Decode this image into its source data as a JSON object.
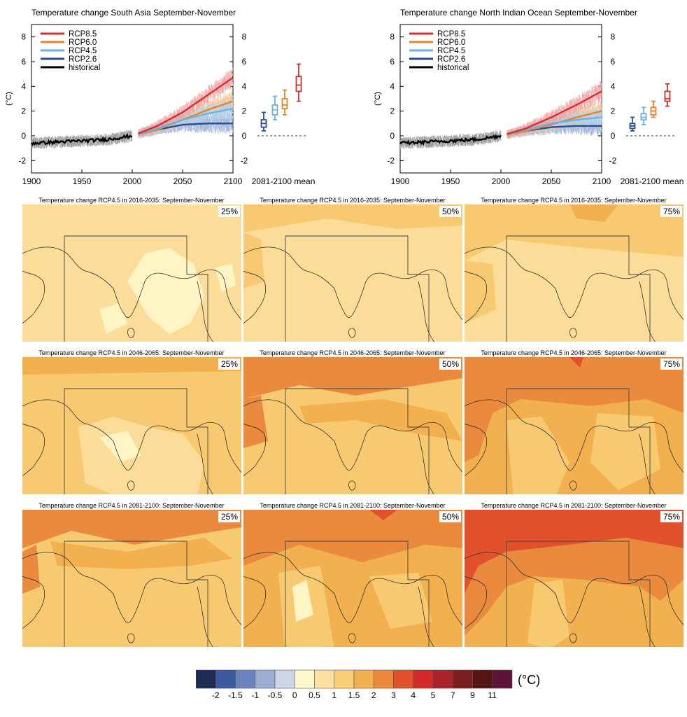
{
  "timeseries": [
    {
      "title": "Temperature change South Asia September-November",
      "ylabel": "(°C)",
      "ylim": [
        -3,
        9
      ],
      "yticks": [
        -2,
        0,
        2,
        4,
        6,
        8
      ],
      "xticks": [
        1900,
        1950,
        2000,
        2050,
        2100
      ],
      "xlim": [
        1900,
        2100
      ],
      "boxplot_label": "2081-2100 mean",
      "legend": [
        "RCP8.5",
        "RCP6.0",
        "RCP4.5",
        "RCP2.6",
        "historical"
      ],
      "series_end_2100": {
        "RCP8.5": 4.7,
        "RCP6.0": 2.8,
        "RCP4.5": 2.2,
        "RCP2.6": 1.0
      },
      "boxplots": [
        {
          "scenario": "RCP2.6",
          "p5": 0.4,
          "p25": 0.7,
          "median": 1.0,
          "p75": 1.3,
          "p95": 1.9
        },
        {
          "scenario": "RCP4.5",
          "p5": 1.3,
          "p25": 1.7,
          "median": 2.1,
          "p75": 2.5,
          "p95": 3.2
        },
        {
          "scenario": "RCP6.0",
          "p5": 1.7,
          "p25": 2.2,
          "median": 2.5,
          "p75": 3.0,
          "p95": 3.7
        },
        {
          "scenario": "RCP8.5",
          "p5": 2.8,
          "p25": 3.6,
          "median": 4.1,
          "p75": 4.8,
          "p95": 5.8
        }
      ]
    },
    {
      "title": "Temperature change North Indian Ocean September-November",
      "ylabel": "(°C)",
      "ylim": [
        -3,
        9
      ],
      "yticks": [
        -2,
        0,
        2,
        4,
        6,
        8
      ],
      "xticks": [
        1900,
        1950,
        2000,
        2050,
        2100
      ],
      "xlim": [
        1900,
        2100
      ],
      "boxplot_label": "2081-2100 mean",
      "legend": [
        "RCP8.5",
        "RCP6.0",
        "RCP4.5",
        "RCP2.6",
        "historical"
      ],
      "series_end_2100": {
        "RCP8.5": 3.6,
        "RCP6.0": 2.0,
        "RCP4.5": 1.5,
        "RCP2.6": 0.8
      },
      "boxplots": [
        {
          "scenario": "RCP2.6",
          "p5": 0.4,
          "p25": 0.6,
          "median": 0.8,
          "p75": 1.0,
          "p95": 1.5
        },
        {
          "scenario": "RCP4.5",
          "p5": 0.9,
          "p25": 1.3,
          "median": 1.5,
          "p75": 1.8,
          "p95": 2.3
        },
        {
          "scenario": "RCP6.0",
          "p5": 1.5,
          "p25": 1.7,
          "median": 2.0,
          "p75": 2.3,
          "p95": 2.8
        },
        {
          "scenario": "RCP8.5",
          "p5": 2.4,
          "p25": 2.8,
          "median": 3.0,
          "p75": 3.6,
          "p95": 4.2
        }
      ]
    }
  ],
  "maps": [
    {
      "title": "Temperature change RCP4.5 in 2016-2035: September-November",
      "percentile": "25%"
    },
    {
      "title": "Temperature change RCP4.5 in 2016-2035: September-November",
      "percentile": "50%"
    },
    {
      "title": "Temperature change RCP4.5 in 2016-2035: September-November",
      "percentile": "75%"
    },
    {
      "title": "Temperature change RCP4.5 in 2046-2065: September-November",
      "percentile": "25%"
    },
    {
      "title": "Temperature change RCP4.5 in 2046-2065: September-November",
      "percentile": "50%"
    },
    {
      "title": "Temperature change RCP4.5 in 2046-2065: September-November",
      "percentile": "75%"
    },
    {
      "title": "Temperature change RCP4.5 in 2081-2100: September-November",
      "percentile": "25%"
    },
    {
      "title": "Temperature change RCP4.5 in 2081-2100: September-November",
      "percentile": "50%"
    },
    {
      "title": "Temperature change RCP4.5 in 2081-2100: September-November",
      "percentile": "75%"
    }
  ],
  "colorbar": {
    "unit": "(°C)",
    "labels": [
      "-2",
      "-1.5",
      "-1",
      "-0.5",
      "0",
      "0.5",
      "1",
      "1.5",
      "2",
      "3",
      "4",
      "5",
      "7",
      "9",
      "11"
    ],
    "colors": [
      "#1f2a55",
      "#3a5aa0",
      "#6b84be",
      "#9aaed3",
      "#cdd6e6",
      "#fff6cc",
      "#fbe0a0",
      "#f8cf78",
      "#f2b04e",
      "#ea8a3e",
      "#e0512c",
      "#d32a2a",
      "#a8232a",
      "#7a1e22",
      "#551515",
      "#5c1538"
    ]
  },
  "colors": {
    "RCP8.5": "#d32f2f",
    "RCP6.0": "#e8832c",
    "RCP4.5": "#6fb1de",
    "RCP2.6": "#2a4d91",
    "historical": "#000000"
  },
  "chart_data": [
    {
      "type": "line",
      "title": "Temperature change South Asia September-November",
      "ylabel": "(°C)",
      "x": [
        1900,
        1925,
        1950,
        1975,
        2000,
        2025,
        2050,
        2075,
        2100
      ],
      "series": [
        {
          "name": "historical",
          "values": [
            -0.6,
            -0.5,
            -0.4,
            -0.3,
            0.0,
            null,
            null,
            null,
            null
          ]
        },
        {
          "name": "RCP2.6",
          "values": [
            null,
            null,
            null,
            null,
            0.0,
            0.5,
            0.9,
            1.0,
            1.0
          ]
        },
        {
          "name": "RCP4.5",
          "values": [
            null,
            null,
            null,
            null,
            0.0,
            0.6,
            1.3,
            1.8,
            2.2
          ]
        },
        {
          "name": "RCP6.0",
          "values": [
            null,
            null,
            null,
            null,
            0.0,
            0.5,
            1.3,
            2.1,
            2.8
          ]
        },
        {
          "name": "RCP8.5",
          "values": [
            null,
            null,
            null,
            null,
            0.0,
            0.8,
            1.9,
            3.3,
            4.7
          ]
        }
      ],
      "xlim": [
        1900,
        2100
      ],
      "ylim": [
        -3,
        9
      ]
    },
    {
      "type": "line",
      "title": "Temperature change North Indian Ocean September-November",
      "ylabel": "(°C)",
      "x": [
        1900,
        1925,
        1950,
        1975,
        2000,
        2025,
        2050,
        2075,
        2100
      ],
      "series": [
        {
          "name": "historical",
          "values": [
            -0.6,
            -0.5,
            -0.4,
            -0.3,
            0.0,
            null,
            null,
            null,
            null
          ]
        },
        {
          "name": "RCP2.6",
          "values": [
            null,
            null,
            null,
            null,
            0.0,
            0.4,
            0.7,
            0.8,
            0.8
          ]
        },
        {
          "name": "RCP4.5",
          "values": [
            null,
            null,
            null,
            null,
            0.0,
            0.5,
            1.0,
            1.3,
            1.5
          ]
        },
        {
          "name": "RCP6.0",
          "values": [
            null,
            null,
            null,
            null,
            0.0,
            0.4,
            0.9,
            1.5,
            2.0
          ]
        },
        {
          "name": "RCP8.5",
          "values": [
            null,
            null,
            null,
            null,
            0.0,
            0.6,
            1.5,
            2.5,
            3.6
          ]
        }
      ],
      "xlim": [
        1900,
        2100
      ],
      "ylim": [
        -3,
        9
      ]
    }
  ]
}
